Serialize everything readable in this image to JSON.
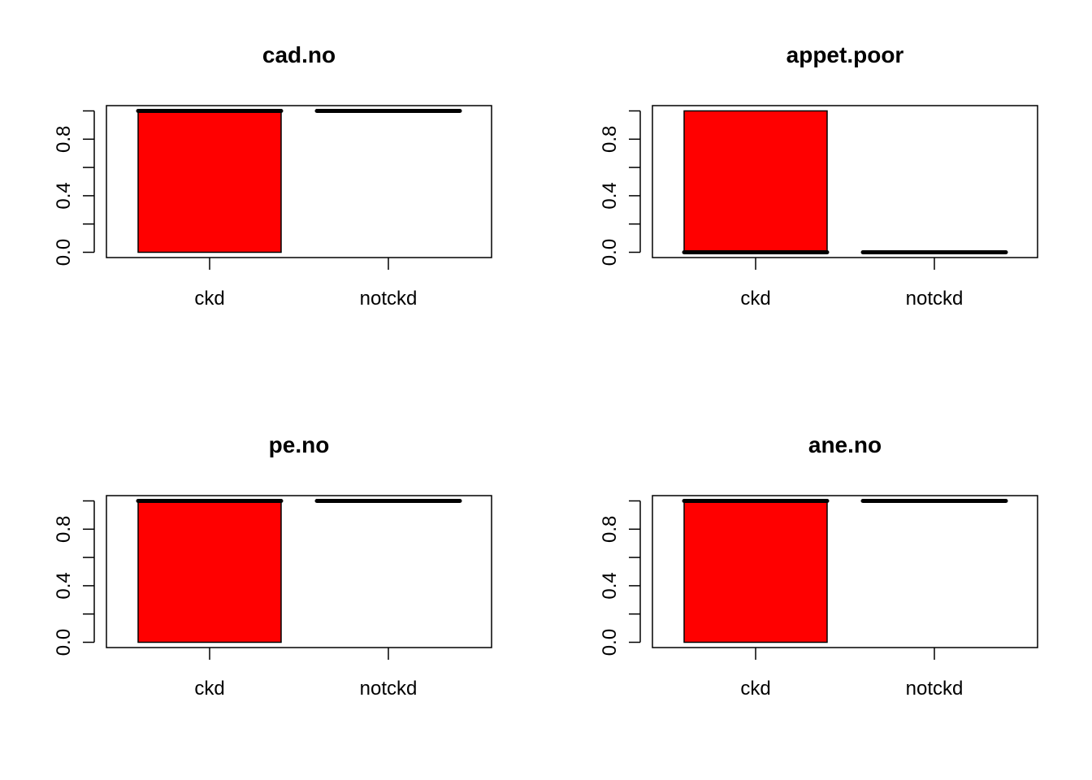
{
  "colors": {
    "box_fill": "#ff0000",
    "stroke": "#000000",
    "background": "#ffffff"
  },
  "chart_data": [
    {
      "type": "boxplot",
      "title": "cad.no",
      "categories": [
        "ckd",
        "notckd"
      ],
      "ylim": [
        0,
        1
      ],
      "yticks": [
        0,
        0.2,
        0.4,
        0.6,
        0.8,
        1.0
      ],
      "ytick_labels": [
        "0.0",
        "0.4",
        "0.8"
      ],
      "grid": false,
      "series": [
        {
          "category": "ckd",
          "q1": 0,
          "median": 1,
          "q3": 1,
          "whisker_low": 0,
          "whisker_high": 1,
          "filled": true
        },
        {
          "category": "notckd",
          "q1": 1,
          "median": 1,
          "q3": 1,
          "whisker_low": 1,
          "whisker_high": 1,
          "filled": false
        }
      ]
    },
    {
      "type": "boxplot",
      "title": "appet.poor",
      "categories": [
        "ckd",
        "notckd"
      ],
      "ylim": [
        0,
        1
      ],
      "yticks": [
        0,
        0.2,
        0.4,
        0.6,
        0.8,
        1.0
      ],
      "ytick_labels": [
        "0.0",
        "0.4",
        "0.8"
      ],
      "grid": false,
      "series": [
        {
          "category": "ckd",
          "q1": 0,
          "median": 0,
          "q3": 1,
          "whisker_low": 0,
          "whisker_high": 1,
          "filled": true
        },
        {
          "category": "notckd",
          "q1": 0,
          "median": 0,
          "q3": 0,
          "whisker_low": 0,
          "whisker_high": 0,
          "filled": false
        }
      ]
    },
    {
      "type": "boxplot",
      "title": "pe.no",
      "categories": [
        "ckd",
        "notckd"
      ],
      "ylim": [
        0,
        1
      ],
      "yticks": [
        0,
        0.2,
        0.4,
        0.6,
        0.8,
        1.0
      ],
      "ytick_labels": [
        "0.0",
        "0.4",
        "0.8"
      ],
      "grid": false,
      "series": [
        {
          "category": "ckd",
          "q1": 0,
          "median": 1,
          "q3": 1,
          "whisker_low": 0,
          "whisker_high": 1,
          "filled": true
        },
        {
          "category": "notckd",
          "q1": 1,
          "median": 1,
          "q3": 1,
          "whisker_low": 1,
          "whisker_high": 1,
          "filled": false
        }
      ]
    },
    {
      "type": "boxplot",
      "title": "ane.no",
      "categories": [
        "ckd",
        "notckd"
      ],
      "ylim": [
        0,
        1
      ],
      "yticks": [
        0,
        0.2,
        0.4,
        0.6,
        0.8,
        1.0
      ],
      "ytick_labels": [
        "0.0",
        "0.4",
        "0.8"
      ],
      "grid": false,
      "series": [
        {
          "category": "ckd",
          "q1": 0,
          "median": 1,
          "q3": 1,
          "whisker_low": 0,
          "whisker_high": 1,
          "filled": true
        },
        {
          "category": "notckd",
          "q1": 1,
          "median": 1,
          "q3": 1,
          "whisker_low": 1,
          "whisker_high": 1,
          "filled": false
        }
      ]
    }
  ]
}
